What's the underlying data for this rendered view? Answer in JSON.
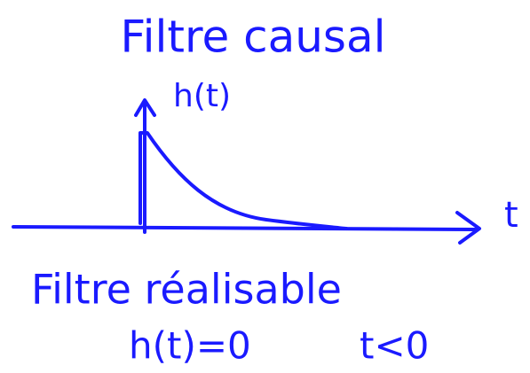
{
  "title": "Filtre causal",
  "axis": {
    "y_label": "h(t)",
    "x_label": "t"
  },
  "notes": [
    "Filtre réalisable",
    "h(t)=0",
    "t<0"
  ]
}
